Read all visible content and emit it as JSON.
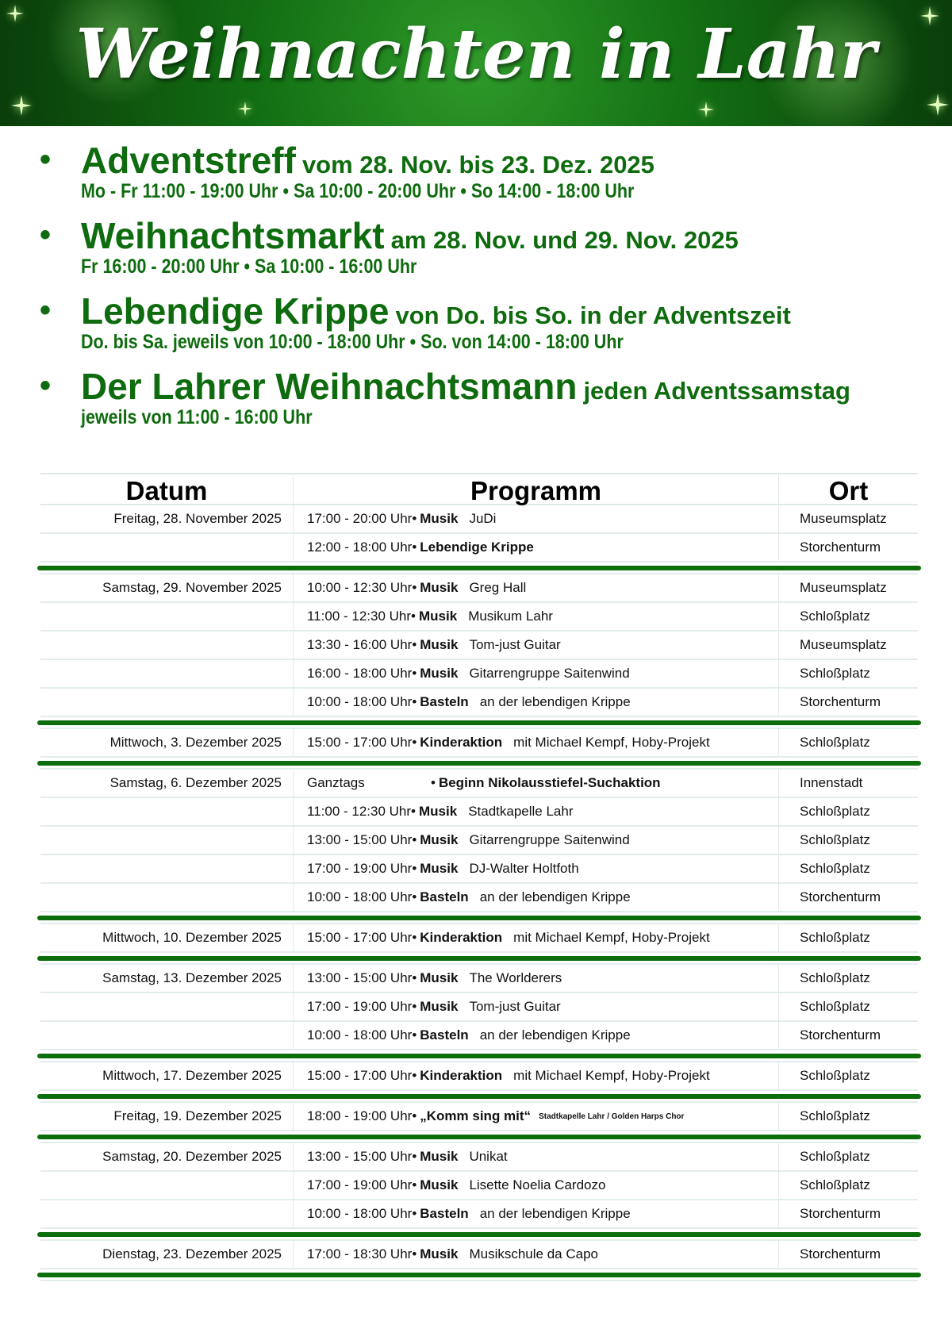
{
  "banner": {
    "title": "Weihnachten in Lahr"
  },
  "colors": {
    "accent": "#0e6b0e",
    "banner": "#137013"
  },
  "events": [
    {
      "name": "Adventstreff",
      "sub": "vom 28. Nov. bis 23. Dez. 2025",
      "times": "Mo - Fr 11:00 - 19:00 Uhr • Sa 10:00 - 20:00 Uhr • So 14:00 - 18:00 Uhr"
    },
    {
      "name": "Weihnachtsmarkt",
      "sub": "am 28. Nov. und 29. Nov. 2025",
      "times": "Fr 16:00 - 20:00 Uhr • Sa 10:00 - 16:00 Uhr"
    },
    {
      "name": "Lebendige Krippe",
      "sub": "von Do. bis So. in der Adventszeit",
      "times": "Do. bis Sa. jeweils von 10:00 - 18:00 Uhr • So. von 14:00 - 18:00 Uhr"
    },
    {
      "name": "Der Lahrer Weihnachtsmann",
      "sub": "jeden Adventssamstag",
      "times": "jeweils von 11:00 - 16:00 Uhr"
    }
  ],
  "table": {
    "headers": [
      "Datum",
      "Programm",
      "Ort"
    ],
    "groups": [
      {
        "date": "Freitag, 28. November 2025",
        "rows": [
          {
            "time": "17:00 - 20:00 Uhr",
            "cat": "Musik",
            "detail": "JuDi",
            "place": "Museumsplatz"
          },
          {
            "time": "12:00 - 18:00 Uhr",
            "cat": "Lebendige Krippe",
            "detail": "",
            "place": "Storchenturm"
          }
        ]
      },
      {
        "date": "Samstag, 29. November 2025",
        "rows": [
          {
            "time": "10:00 - 12:30 Uhr",
            "cat": "Musik",
            "detail": "Greg Hall",
            "place": "Museumsplatz"
          },
          {
            "time": "11:00 - 12:30 Uhr",
            "cat": "Musik",
            "detail": "Musikum Lahr",
            "place": "Schloßplatz"
          },
          {
            "time": "13:30 - 16:00 Uhr",
            "cat": "Musik",
            "detail": "Tom-just Guitar",
            "place": "Museumsplatz"
          },
          {
            "time": "16:00 - 18:00 Uhr",
            "cat": "Musik",
            "detail": "Gitarrengruppe Saitenwind",
            "place": "Schloßplatz"
          },
          {
            "time": "10:00 - 18:00 Uhr",
            "cat": "Basteln",
            "detail": "an der lebendigen Krippe",
            "place": "Storchenturm"
          }
        ]
      },
      {
        "date": "Mittwoch, 3. Dezember 2025",
        "rows": [
          {
            "time": "15:00 - 17:00 Uhr",
            "cat": "Kinderaktion",
            "detail": "mit Michael Kempf,  Hoby-Projekt",
            "place": "Schloßplatz"
          }
        ]
      },
      {
        "date": "Samstag, 6. Dezember 2025",
        "rows": [
          {
            "time": "Ganztags",
            "cat": "Beginn Nikolausstiefel-Suchaktion",
            "detail": "",
            "place": "Innenstadt"
          },
          {
            "time": "11:00 - 12:30 Uhr",
            "cat": "Musik",
            "detail": "Stadtkapelle Lahr",
            "place": "Schloßplatz"
          },
          {
            "time": "13:00 - 15:00 Uhr",
            "cat": "Musik",
            "detail": "Gitarrengruppe Saitenwind",
            "place": "Schloßplatz"
          },
          {
            "time": "17:00 - 19:00 Uhr",
            "cat": "Musik",
            "detail": "DJ-Walter Holtfoth",
            "place": "Schloßplatz"
          },
          {
            "time": "10:00 - 18:00 Uhr",
            "cat": "Basteln",
            "detail": "an der lebendigen Krippe",
            "place": "Storchenturm"
          }
        ]
      },
      {
        "date": "Mittwoch, 10. Dezember 2025",
        "rows": [
          {
            "time": "15:00 - 17:00 Uhr",
            "cat": "Kinderaktion",
            "detail": "mit Michael Kempf,  Hoby-Projekt",
            "place": "Schloßplatz"
          }
        ]
      },
      {
        "date": "Samstag, 13. Dezember 2025",
        "rows": [
          {
            "time": "13:00 - 15:00 Uhr",
            "cat": "Musik",
            "detail": "The Worlderers",
            "place": "Schloßplatz"
          },
          {
            "time": "17:00 - 19:00 Uhr",
            "cat": "Musik",
            "detail": "Tom-just Guitar",
            "place": "Schloßplatz"
          },
          {
            "time": "10:00 - 18:00 Uhr",
            "cat": "Basteln",
            "detail": "an der lebendigen Krippe",
            "place": "Storchenturm"
          }
        ]
      },
      {
        "date": "Mittwoch, 17. Dezember 2025",
        "rows": [
          {
            "time": "15:00 - 17:00 Uhr",
            "cat": "Kinderaktion",
            "detail": "mit Michael Kempf,  Hoby-Projekt",
            "place": "Schloßplatz"
          }
        ]
      },
      {
        "date": "Freitag, 19. Dezember 2025",
        "rows": [
          {
            "time": "18:00 - 19:00 Uhr",
            "cat": "„Komm sing mit“",
            "detail": "",
            "note": "Stadtkapelle Lahr / Golden Harps Chor",
            "place": "Schloßplatz"
          }
        ]
      },
      {
        "date": "Samstag, 20. Dezember 2025",
        "rows": [
          {
            "time": "13:00 - 15:00 Uhr",
            "cat": "Musik",
            "detail": "Unikat",
            "place": "Schloßplatz"
          },
          {
            "time": "17:00 - 19:00 Uhr",
            "cat": "Musik",
            "detail": "Lisette Noelia Cardozo",
            "place": "Schloßplatz"
          },
          {
            "time": "10:00 - 18:00 Uhr",
            "cat": "Basteln",
            "detail": "an der lebendigen Krippe",
            "place": "Storchenturm"
          }
        ]
      },
      {
        "date": "Dienstag, 23. Dezember 2025",
        "rows": [
          {
            "time": "17:00 - 18:30 Uhr",
            "cat": "Musik",
            "detail": "Musikschule da Capo",
            "place": "Storchenturm"
          }
        ]
      }
    ]
  }
}
